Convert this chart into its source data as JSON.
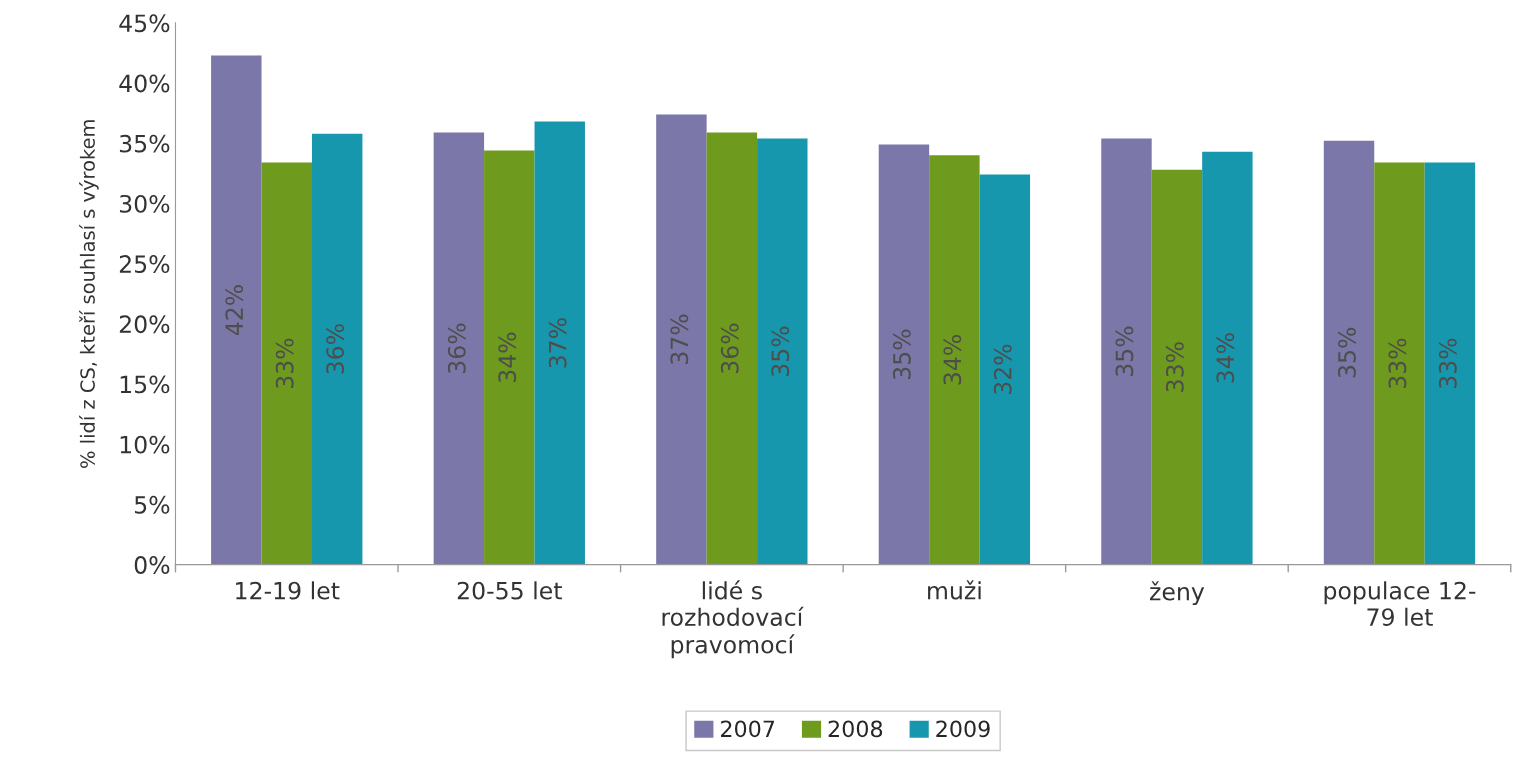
{
  "chart_data": {
    "type": "bar",
    "ylabel": "% lidí z CS, kteří souhlasí s výrokem",
    "categories": [
      "12-19 let",
      "20-55 let",
      "lidé s\nrozhodovací\npravomocí",
      "muži",
      "ženy",
      "populace 12-\n79 let"
    ],
    "series": [
      {
        "name": "2007",
        "color": "#7b77a8",
        "values": [
          42.3,
          35.9,
          37.4,
          34.9,
          35.4,
          35.2
        ],
        "value_labels": [
          "42%",
          "36%",
          "37%",
          "35%",
          "35%",
          "35%"
        ]
      },
      {
        "name": "2008",
        "color": "#6e9a1e",
        "values": [
          33.4,
          34.4,
          35.9,
          34.0,
          32.8,
          33.4
        ],
        "value_labels": [
          "33%",
          "34%",
          "36%",
          "34%",
          "33%",
          "33%"
        ]
      },
      {
        "name": "2009",
        "color": "#1797ae",
        "values": [
          35.8,
          36.8,
          35.4,
          32.4,
          34.3,
          33.4
        ],
        "value_labels": [
          "36%",
          "37%",
          "35%",
          "32%",
          "34%",
          "33%"
        ]
      }
    ],
    "ylim": [
      0,
      45
    ],
    "yticks": [
      {
        "value": 0,
        "label": "0%"
      },
      {
        "value": 5,
        "label": "5%"
      },
      {
        "value": 10,
        "label": "10%"
      },
      {
        "value": 15,
        "label": "15%"
      },
      {
        "value": 20,
        "label": "20%"
      },
      {
        "value": 25,
        "label": "25%"
      },
      {
        "value": 30,
        "label": "30%"
      },
      {
        "value": 35,
        "label": "35%"
      },
      {
        "value": 40,
        "label": "40%"
      },
      {
        "value": 45,
        "label": "45%"
      }
    ],
    "grid": false,
    "legend": "bottom"
  }
}
